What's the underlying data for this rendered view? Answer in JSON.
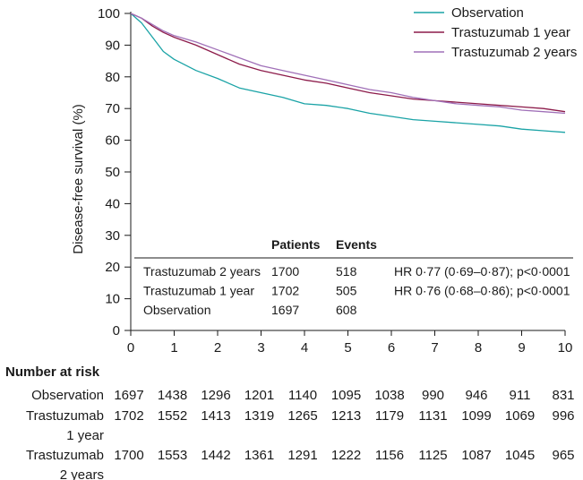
{
  "chart_data": {
    "type": "line",
    "ylabel": "Disease-free survival (%)",
    "xlabel": "",
    "xlim": [
      0,
      10
    ],
    "ylim": [
      0,
      100
    ],
    "x_ticks": [
      "0",
      "1",
      "2",
      "3",
      "4",
      "5",
      "6",
      "7",
      "8",
      "9",
      "10"
    ],
    "y_ticks": [
      "0",
      "10",
      "20",
      "30",
      "40",
      "50",
      "60",
      "70",
      "80",
      "90",
      "100"
    ],
    "grid": false,
    "legend_position": "top-right",
    "series": [
      {
        "name": "Observation",
        "color": "#1aa3a6",
        "x": [
          0,
          0.25,
          0.5,
          0.75,
          1,
          1.5,
          2,
          2.5,
          3,
          3.5,
          4,
          4.5,
          5,
          5.5,
          6,
          6.5,
          7,
          7.5,
          8,
          8.5,
          9,
          9.5,
          10
        ],
        "y": [
          100,
          97,
          92.5,
          88,
          85.5,
          82,
          79.5,
          76.5,
          75,
          73.5,
          71.5,
          71,
          70,
          68.5,
          67.5,
          66.5,
          66,
          65.5,
          65,
          64.5,
          63.5,
          63,
          62.5
        ]
      },
      {
        "name": "Trastuzumab 1 year",
        "color": "#8c1b4a",
        "x": [
          0,
          0.25,
          0.5,
          0.75,
          1,
          1.5,
          2,
          2.5,
          3,
          3.5,
          4,
          4.5,
          5,
          5.5,
          6,
          6.5,
          7,
          7.5,
          8,
          8.5,
          9,
          9.5,
          10
        ],
        "y": [
          100,
          98.5,
          96,
          94,
          92.5,
          90,
          87,
          84,
          82,
          80.5,
          79,
          78,
          76.5,
          75,
          74,
          73,
          72.5,
          72,
          71.5,
          71,
          70.5,
          70,
          69
        ]
      },
      {
        "name": "Trastuzumab 2 years",
        "color": "#a070b8",
        "x": [
          0,
          0.25,
          0.5,
          0.75,
          1,
          1.5,
          2,
          2.5,
          3,
          3.5,
          4,
          4.5,
          5,
          5.5,
          6,
          6.5,
          7,
          7.5,
          8,
          8.5,
          9,
          9.5,
          10
        ],
        "y": [
          100,
          98.5,
          96.5,
          94.5,
          93,
          91,
          88.5,
          86,
          83.5,
          82,
          80.5,
          79,
          77.5,
          76,
          75,
          73.5,
          72.5,
          71.5,
          71,
          70.5,
          69.5,
          69,
          68.5
        ]
      }
    ],
    "inset_table": {
      "headers": [
        "",
        "Patients",
        "Events",
        ""
      ],
      "rows": [
        [
          "Trastuzumab 2 years",
          "1700",
          "518",
          "HR 0·77 (0·69–0·87); p<0·0001"
        ],
        [
          "Trastuzumab 1 year",
          "1702",
          "505",
          "HR 0·76 (0·68–0·86); p<0·0001"
        ],
        [
          "Observation",
          "1697",
          "608",
          ""
        ]
      ]
    },
    "risk_table": {
      "title": "Number at risk",
      "rows": [
        {
          "label": [
            "Observation"
          ],
          "values": [
            "1697",
            "1438",
            "1296",
            "1201",
            "1140",
            "1095",
            "1038",
            "990",
            "946",
            "911",
            "831"
          ]
        },
        {
          "label": [
            "Trastuzumab",
            "1 year"
          ],
          "values": [
            "1702",
            "1552",
            "1413",
            "1319",
            "1265",
            "1213",
            "1179",
            "1131",
            "1099",
            "1069",
            "996"
          ]
        },
        {
          "label": [
            "Trastuzumab",
            "2 years"
          ],
          "values": [
            "1700",
            "1553",
            "1442",
            "1361",
            "1291",
            "1222",
            "1156",
            "1125",
            "1087",
            "1045",
            "965"
          ]
        }
      ]
    }
  }
}
